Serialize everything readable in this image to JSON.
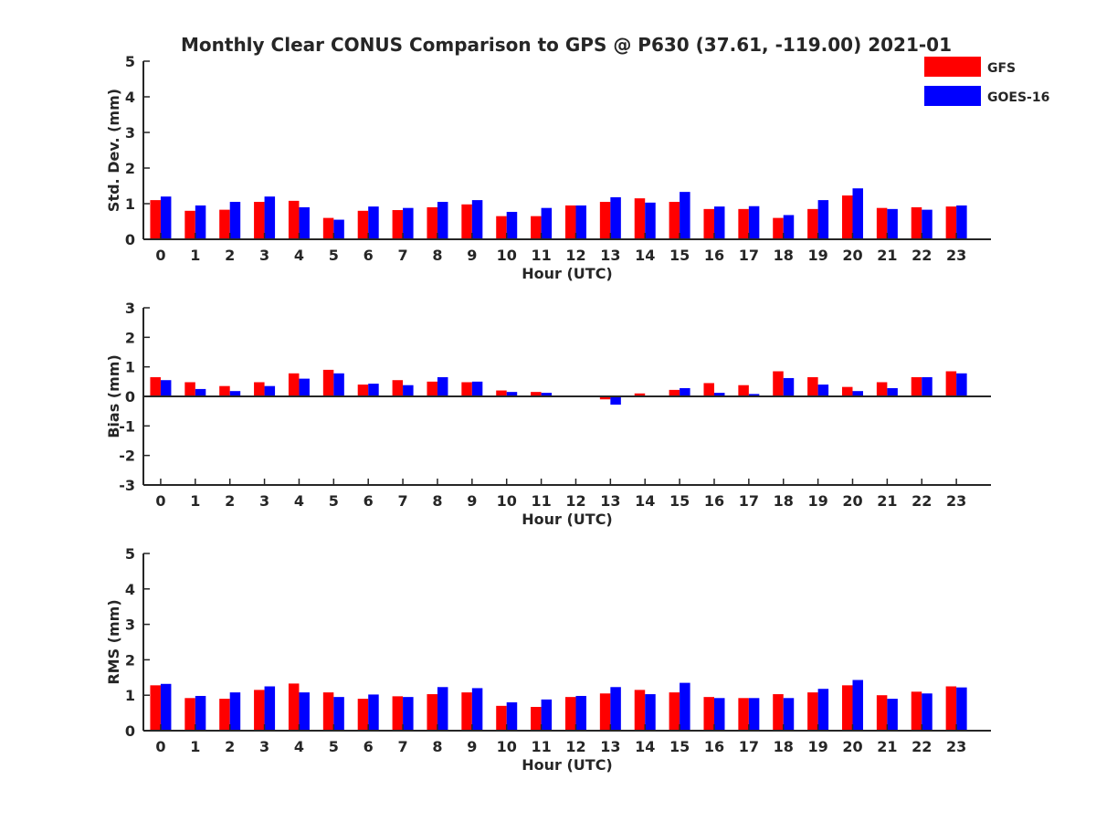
{
  "title": "Monthly Clear CONUS Comparison to GPS @ P630 (37.61, -119.00) 2021-01",
  "legend": {
    "placement": "top-right",
    "entries": [
      {
        "name": "GFS",
        "color": "#ff0000"
      },
      {
        "name": "GOES-16",
        "color": "#0000ff"
      }
    ]
  },
  "chart_data": [
    {
      "type": "bar",
      "panel": "std",
      "ylabel": "Std. Dev. (mm)",
      "xlabel": "Hour (UTC)",
      "ylim": [
        0,
        5
      ],
      "yticks": [
        "0",
        "1",
        "2",
        "3",
        "4",
        "5"
      ],
      "categories": [
        "0",
        "1",
        "2",
        "3",
        "4",
        "5",
        "6",
        "7",
        "8",
        "9",
        "10",
        "11",
        "12",
        "13",
        "14",
        "15",
        "16",
        "17",
        "18",
        "19",
        "20",
        "21",
        "22",
        "23"
      ],
      "series": [
        {
          "name": "GFS",
          "color": "#ff0000",
          "values": [
            1.1,
            0.8,
            0.83,
            1.05,
            1.08,
            0.6,
            0.8,
            0.82,
            0.9,
            0.98,
            0.65,
            0.65,
            0.95,
            1.05,
            1.15,
            1.05,
            0.85,
            0.85,
            0.6,
            0.85,
            1.23,
            0.88,
            0.9,
            0.92
          ]
        },
        {
          "name": "GOES-16",
          "color": "#0000ff",
          "values": [
            1.2,
            0.95,
            1.05,
            1.2,
            0.9,
            0.55,
            0.92,
            0.88,
            1.05,
            1.1,
            0.77,
            0.88,
            0.95,
            1.18,
            1.03,
            1.33,
            0.92,
            0.93,
            0.68,
            1.1,
            1.43,
            0.85,
            0.83,
            0.95
          ]
        }
      ]
    },
    {
      "type": "bar",
      "panel": "bias",
      "ylabel": "Bias (mm)",
      "xlabel": "Hour (UTC)",
      "ylim": [
        -3,
        3
      ],
      "yticks": [
        "-3",
        "-2",
        "-1",
        "0",
        "1",
        "2",
        "3"
      ],
      "categories": [
        "0",
        "1",
        "2",
        "3",
        "4",
        "5",
        "6",
        "7",
        "8",
        "9",
        "10",
        "11",
        "12",
        "13",
        "14",
        "15",
        "16",
        "17",
        "18",
        "19",
        "20",
        "21",
        "22",
        "23"
      ],
      "series": [
        {
          "name": "GFS",
          "color": "#ff0000",
          "values": [
            0.65,
            0.48,
            0.35,
            0.48,
            0.78,
            0.9,
            0.4,
            0.55,
            0.5,
            0.48,
            0.2,
            0.15,
            0.0,
            -0.1,
            0.1,
            0.22,
            0.45,
            0.38,
            0.85,
            0.65,
            0.32,
            0.48,
            0.65,
            0.85
          ]
        },
        {
          "name": "GOES-16",
          "color": "#0000ff",
          "values": [
            0.55,
            0.25,
            0.18,
            0.35,
            0.6,
            0.78,
            0.43,
            0.38,
            0.65,
            0.5,
            0.15,
            0.12,
            0.0,
            -0.28,
            -0.03,
            0.28,
            0.12,
            0.08,
            0.62,
            0.4,
            0.18,
            0.28,
            0.65,
            0.78
          ]
        }
      ]
    },
    {
      "type": "bar",
      "panel": "rms",
      "ylabel": "RMS (mm)",
      "xlabel": "Hour (UTC)",
      "ylim": [
        0,
        5
      ],
      "yticks": [
        "0",
        "1",
        "2",
        "3",
        "4",
        "5"
      ],
      "categories": [
        "0",
        "1",
        "2",
        "3",
        "4",
        "5",
        "6",
        "7",
        "8",
        "9",
        "10",
        "11",
        "12",
        "13",
        "14",
        "15",
        "16",
        "17",
        "18",
        "19",
        "20",
        "21",
        "22",
        "23"
      ],
      "series": [
        {
          "name": "GFS",
          "color": "#ff0000",
          "values": [
            1.28,
            0.92,
            0.9,
            1.15,
            1.33,
            1.08,
            0.9,
            0.97,
            1.03,
            1.08,
            0.7,
            0.67,
            0.95,
            1.05,
            1.15,
            1.08,
            0.95,
            0.92,
            1.03,
            1.08,
            1.28,
            1.0,
            1.1,
            1.25
          ]
        },
        {
          "name": "GOES-16",
          "color": "#0000ff",
          "values": [
            1.32,
            0.98,
            1.08,
            1.25,
            1.08,
            0.95,
            1.02,
            0.95,
            1.23,
            1.2,
            0.8,
            0.88,
            0.98,
            1.23,
            1.03,
            1.35,
            0.92,
            0.92,
            0.92,
            1.18,
            1.43,
            0.9,
            1.05,
            1.22
          ]
        }
      ]
    }
  ]
}
